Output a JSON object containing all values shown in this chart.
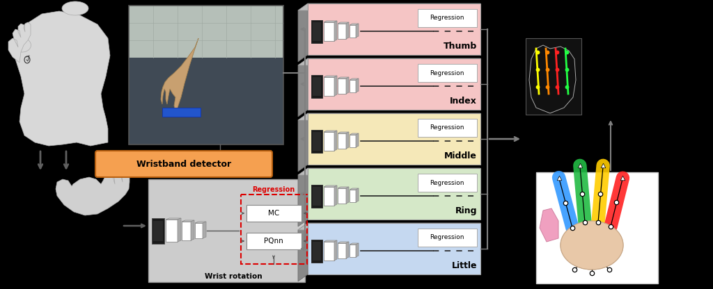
{
  "background_color": "#000000",
  "finger_boxes": [
    {
      "label": "Thumb",
      "color": "#f5c5c5"
    },
    {
      "label": "Index",
      "color": "#f5c5c5"
    },
    {
      "label": "Middle",
      "color": "#f5e8b8"
    },
    {
      "label": "Ring",
      "color": "#d5e8c8"
    },
    {
      "label": "Little",
      "color": "#c5d8f0"
    }
  ],
  "wristband_label": "Wristband detector",
  "regression_label": "Regression",
  "wrist_rotation_label": "Wrist rotation",
  "mc_label": "MC",
  "pqnn_label": "PQnn",
  "arrow_color": "#808080",
  "reg_border_color": "#dd0000",
  "wristband_box_color": "#f5a050",
  "body_color": "#d8d8d8",
  "hand_color": "#d0d0d0",
  "gray_bg": "#cccccc"
}
